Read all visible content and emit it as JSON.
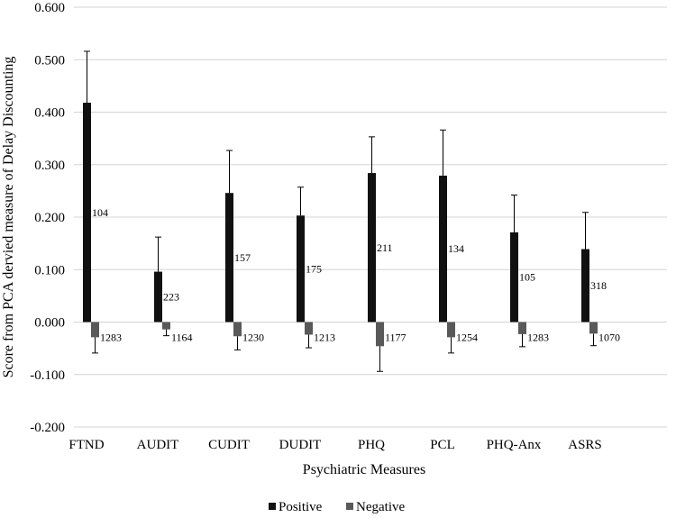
{
  "chart_data": {
    "type": "bar",
    "title": "",
    "xlabel": "Psychiatric Measures",
    "ylabel": "Score from PCA dervied measure of Delay Discounting",
    "ylim": [
      -0.2,
      0.6
    ],
    "yticks": [
      -0.2,
      -0.1,
      0.0,
      0.1,
      0.2,
      0.3,
      0.4,
      0.5,
      0.6
    ],
    "ytick_labels": [
      "-0.200",
      "-0.100",
      "0.000",
      "0.100",
      "0.200",
      "0.300",
      "0.400",
      "0.500",
      "0.600"
    ],
    "grid": "horizontal",
    "legend_position": "bottom",
    "categories": [
      "FTND",
      "AUDIT",
      "CUDIT",
      "DUDIT",
      "PHQ",
      "PCL",
      "PHQ-Anx",
      "ASRS"
    ],
    "series": [
      {
        "name": "Positive",
        "color": "#111111",
        "values": [
          0.418,
          0.096,
          0.246,
          0.203,
          0.284,
          0.279,
          0.171,
          0.139
        ],
        "errors": [
          0.098,
          0.066,
          0.081,
          0.054,
          0.069,
          0.087,
          0.071,
          0.07
        ],
        "labels": [
          "104",
          "223",
          "157",
          "175",
          "211",
          "134",
          "105",
          "318"
        ]
      },
      {
        "name": "Negative",
        "color": "#595959",
        "values": [
          -0.029,
          -0.014,
          -0.027,
          -0.024,
          -0.046,
          -0.029,
          -0.023,
          -0.022
        ],
        "errors": [
          0.03,
          0.012,
          0.026,
          0.025,
          0.048,
          0.03,
          0.024,
          0.023
        ],
        "labels": [
          "1283",
          "1164",
          "1230",
          "1213",
          "1177",
          "1254",
          "1283",
          "1070"
        ]
      }
    ]
  }
}
